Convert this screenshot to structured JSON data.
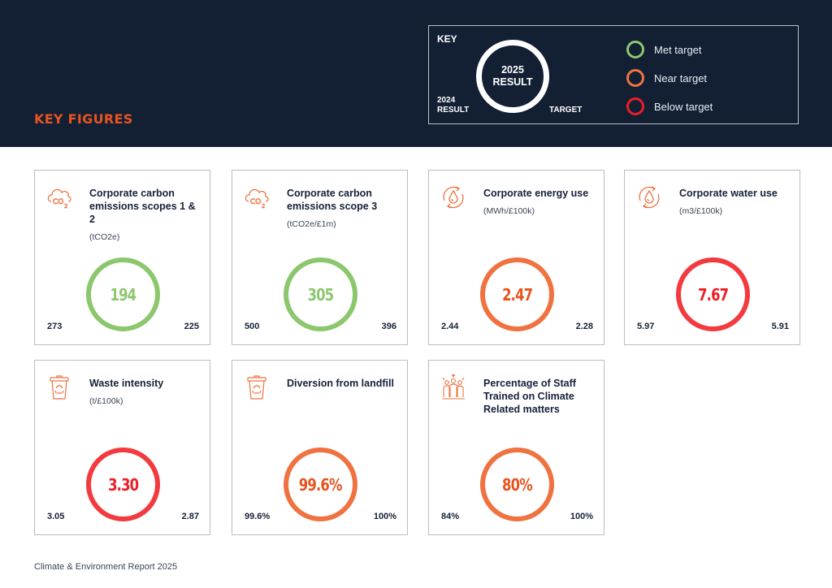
{
  "section_title": "KEY FIGURES",
  "key": {
    "label": "KEY",
    "ring_line1": "2025",
    "ring_line2": "RESULT",
    "prev_line1": "2024",
    "prev_line2": "RESULT",
    "target": "TARGET",
    "legend": [
      {
        "label": "Met target",
        "color": "#8cc76e"
      },
      {
        "label": "Near target",
        "color": "#ef7240"
      },
      {
        "label": "Below target",
        "color": "#ee1c25"
      }
    ]
  },
  "colors": {
    "met": "#8cc76e",
    "near": "#ef7240",
    "below": "#f23a3f",
    "accent": "#e8531e",
    "header_bg": "#132034"
  },
  "cards": [
    {
      "icon": "co2-cloud-icon",
      "title": "Corporate carbon emissions scopes 1 & 2",
      "unit": "(tCO2e)",
      "value": "194",
      "status": "met",
      "prev": "273",
      "target": "225"
    },
    {
      "icon": "co2-cloud-icon",
      "title": "Corporate carbon emissions scope 3",
      "unit": "(tCO2e/£1m)",
      "value": "305",
      "status": "met",
      "prev": "500",
      "target": "396"
    },
    {
      "icon": "energy-drop-cycle-icon",
      "title": "Corporate energy use",
      "unit": "(MWh/£100k)",
      "value": "2.47",
      "status": "near",
      "prev": "2.44",
      "target": "2.28"
    },
    {
      "icon": "water-drop-cycle-icon",
      "title": "Corporate water use",
      "unit": "(m3/£100k)",
      "value": "7.67",
      "status": "below",
      "prev": "5.97",
      "target": "5.91"
    },
    {
      "icon": "recycle-bin-icon",
      "title": "Waste intensity",
      "unit": "(t/£100k)",
      "value": "3.30",
      "status": "below",
      "prev": "3.05",
      "target": "2.87"
    },
    {
      "icon": "recycle-bin-icon",
      "title": "Diversion from landfill",
      "unit": "",
      "value": "99.6%",
      "status": "near",
      "prev": "99.6%",
      "target": "100%"
    },
    {
      "icon": "staff-group-icon",
      "title": "Percentage of Staff Trained on Climate Related matters",
      "unit": "",
      "value": "80%",
      "status": "near",
      "prev": "84%",
      "target": "100%"
    }
  ],
  "footer": "Climate & Environment Report 2025"
}
